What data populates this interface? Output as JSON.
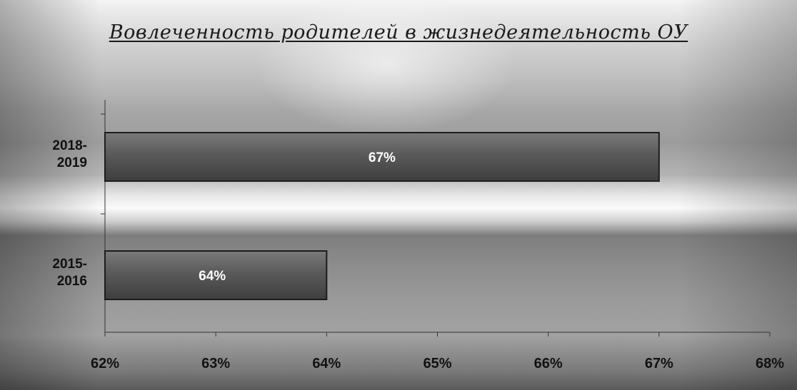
{
  "chart_data": {
    "type": "bar",
    "orientation": "horizontal",
    "title": "Вовлеченность родителей в жизнедеятельность ОУ",
    "categories": [
      [
        "2018-",
        "2019"
      ],
      [
        "2015-",
        "2016"
      ]
    ],
    "values": [
      67,
      64
    ],
    "data_labels": [
      "67%",
      "64%"
    ],
    "xlim": [
      62,
      68
    ],
    "x_ticks": [
      62,
      63,
      64,
      65,
      66,
      67,
      68
    ],
    "x_tick_labels": [
      "62%",
      "63%",
      "64%",
      "65%",
      "66%",
      "67%",
      "68%"
    ],
    "xlabel": "",
    "ylabel": "",
    "grid": false,
    "legend": "none",
    "colors": {
      "bar_fill_light": "#7a7a7a",
      "bar_fill_dark": "#3e3e3e",
      "bar_border": "#1c1c1c",
      "data_label": "#ffffff",
      "axis": "#333333"
    }
  }
}
